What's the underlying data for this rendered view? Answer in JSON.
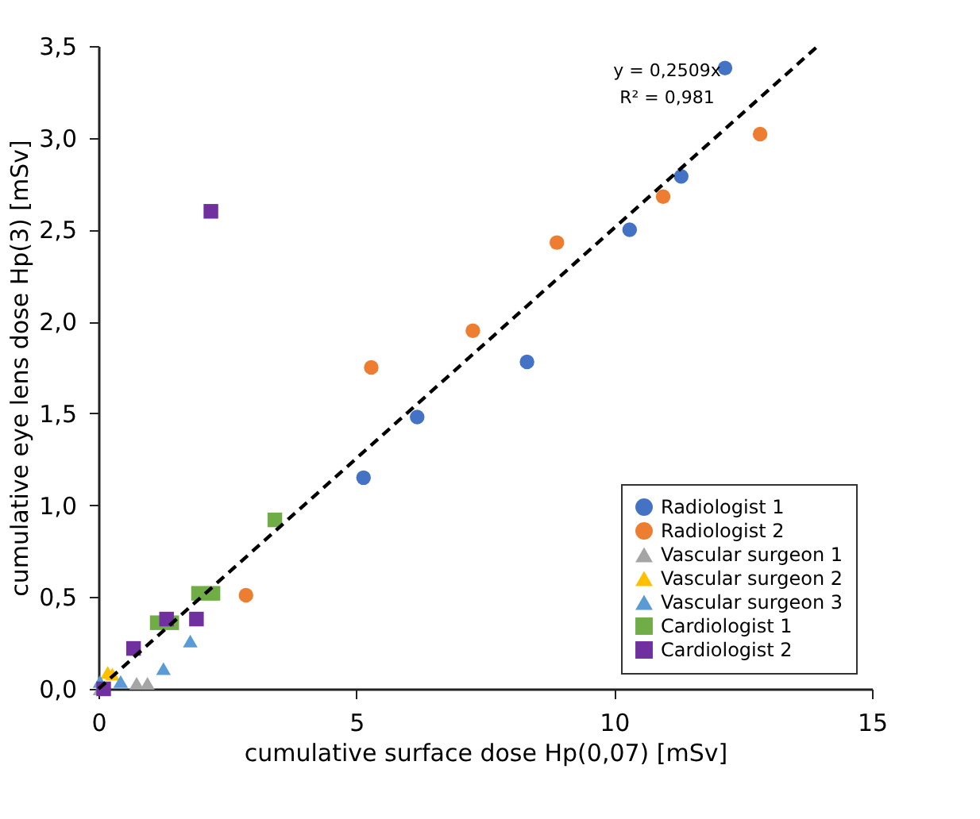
{
  "chart_data": {
    "type": "scatter",
    "xlabel": "cumulative surface dose Hp(0,07) [mSv]",
    "ylabel": "cumulative eye lens dose Hp(3) [mSv]",
    "xlim": [
      0,
      15
    ],
    "xticks": [
      0,
      5,
      10,
      15
    ],
    "ylim": [
      0,
      3.5
    ],
    "yticks": [
      {
        "value": 0,
        "label": "0,0"
      },
      {
        "value": 0.5,
        "label": "0,5"
      },
      {
        "value": 1,
        "label": "1,0"
      },
      {
        "value": 1.5,
        "label": "1,5"
      },
      {
        "value": 2,
        "label": "2,0"
      },
      {
        "value": 2.5,
        "label": "2,5"
      },
      {
        "value": 3,
        "label": "3,0"
      },
      {
        "value": 3.5,
        "label": "3,5"
      }
    ],
    "grid": false,
    "legend": "bottom right",
    "annotations": [
      "y = 0,2509x",
      "R² = 0,981"
    ],
    "series": [
      {
        "name": "Radiologist 1",
        "color": "#4472c4",
        "marker": "circle",
        "x": [
          5.14,
          6.18,
          8.31,
          10.3,
          11.3,
          12.15
        ],
        "values": [
          1.15,
          1.48,
          1.78,
          2.5,
          2.79,
          3.38
        ]
      },
      {
        "name": "Radiologist 2",
        "color": "#ed7d31",
        "marker": "circle",
        "x": [
          2.86,
          5.29,
          7.26,
          8.89,
          10.95,
          12.83
        ],
        "values": [
          0.51,
          1.75,
          1.95,
          2.43,
          2.68,
          3.02
        ]
      },
      {
        "name": "Vascular surgeon 1",
        "color": "#a5a5a5",
        "marker": "triangle",
        "x": [
          0.03,
          0.74,
          0.95
        ],
        "values": [
          0.0,
          0.03,
          0.03
        ]
      },
      {
        "name": "Vascular surgeon 2",
        "color": "#ffc000",
        "marker": "triangle",
        "x": [
          0.18,
          0.27
        ],
        "values": [
          0.09,
          0.08
        ]
      },
      {
        "name": "Vascular surgeon 3",
        "color": "#5b9bd5",
        "marker": "triangle",
        "x": [
          0.03,
          0.43,
          1.26,
          1.78
        ],
        "values": [
          0.04,
          0.04,
          0.11,
          0.26
        ]
      },
      {
        "name": "Cardiologist 1",
        "color": "#70ad47",
        "marker": "square",
        "x": [
          1.14,
          1.42,
          1.94,
          2.22,
          3.42
        ],
        "values": [
          0.36,
          0.36,
          0.52,
          0.52,
          0.92
        ]
      },
      {
        "name": "Cardiologist 2",
        "color": "#7030a0",
        "marker": "square",
        "x": [
          0.1,
          0.68,
          1.32,
          1.9,
          2.18
        ],
        "values": [
          0.0,
          0.22,
          0.38,
          0.38,
          2.6
        ]
      },
      {
        "type": "line",
        "color": "#000000",
        "line_style": "dashed",
        "marker": "none",
        "x": [
          0,
          13.95
        ],
        "values": [
          0,
          3.5
        ]
      }
    ]
  }
}
